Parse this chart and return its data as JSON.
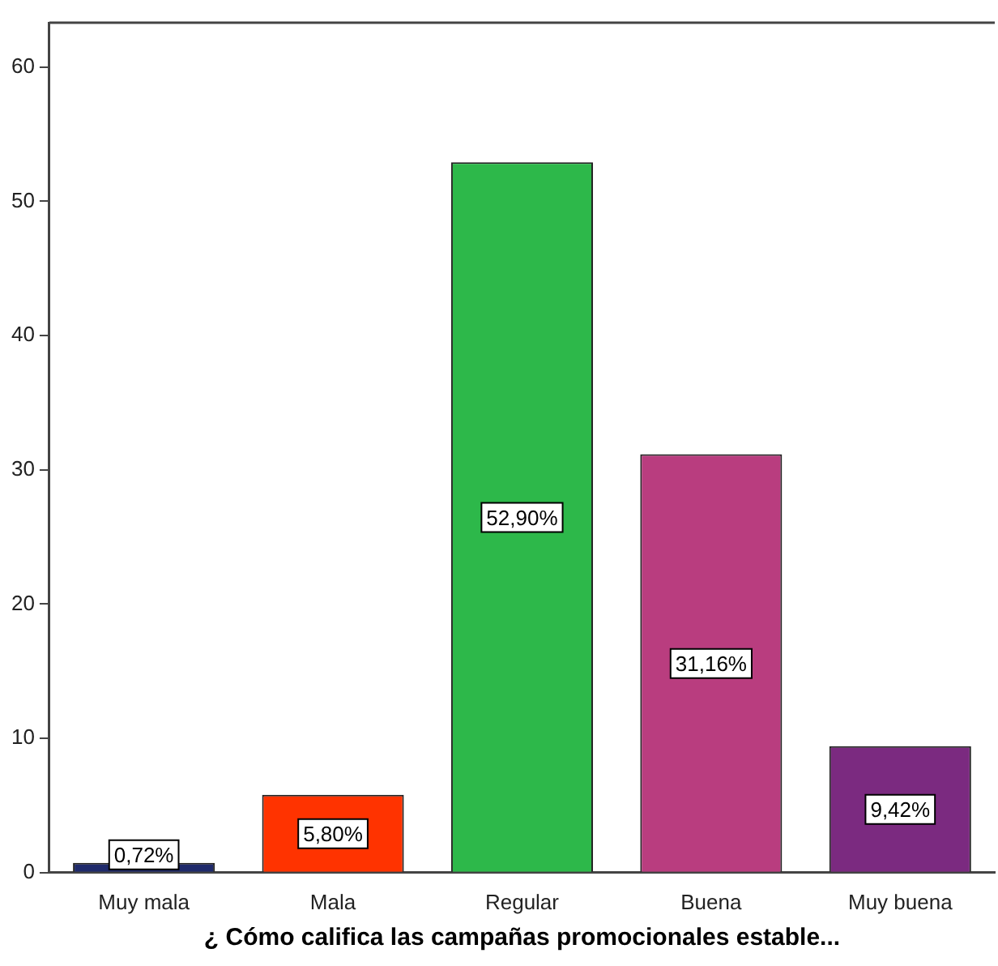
{
  "chart_data": {
    "type": "bar",
    "xlabel": "¿ Cómo califica las campañas promocionales estable...",
    "categories": [
      "Muy mala",
      "Mala",
      "Regular",
      "Buena",
      "Muy buena"
    ],
    "values": [
      0.72,
      5.8,
      52.9,
      31.16,
      9.42
    ],
    "colors": [
      "#1f2a6b",
      "#ff3300",
      "#2db84a",
      "#b93d7f",
      "#7b2a80"
    ],
    "value_labels": [
      "0,72%",
      "5,80%",
      "52,90%",
      "31,16%",
      "9,42%"
    ],
    "ylim": [
      0,
      63.3
    ],
    "yticks": [
      0,
      10,
      20,
      30,
      40,
      50,
      60
    ],
    "grid": false,
    "legend": false
  }
}
